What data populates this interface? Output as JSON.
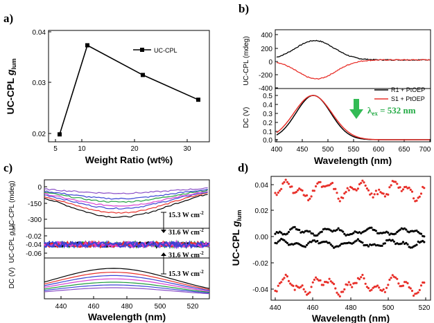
{
  "figure": {
    "panel_labels": [
      "a)",
      "b)",
      "c)",
      "d)"
    ],
    "colors": {
      "black": "#000000",
      "red": "#e8302a",
      "blue": "#3b44d4",
      "green": "#1f9e3c",
      "purple": "#8a4fc8",
      "magenta": "#d63fd0",
      "arrow_green": "#33bb55"
    }
  },
  "chart_data": [
    {
      "panel": "a)",
      "type": "line",
      "xlabel": "Weight Ratio (wt%)",
      "ylabel_main": "UC-CPL ",
      "ylabel_g": "g",
      "ylabel_sub": "lum",
      "xticks": [
        "5",
        "10",
        "20",
        "30"
      ],
      "yticks": [
        "0.02",
        "0.03",
        "0.04"
      ],
      "xlim": [
        3,
        32
      ],
      "ylim": [
        0.0185,
        0.041
      ],
      "legend": [
        "UC-CPL"
      ],
      "series": [
        {
          "name": "UC-CPL",
          "x": [
            5,
            10,
            20,
            30
          ],
          "values": [
            0.02,
            0.038,
            0.032,
            0.027
          ]
        }
      ]
    },
    {
      "panel": "b)",
      "type": "line",
      "xlabel": "Wavelength (nm)",
      "xticks": [
        "400",
        "450",
        "500",
        "550",
        "600",
        "650",
        "700"
      ],
      "xlim": [
        400,
        700
      ],
      "top": {
        "ylabel": "UC-CPL (mdeg)",
        "yticks": [
          "400",
          "200",
          "0",
          "-200",
          "-400"
        ],
        "ylim": [
          -420,
          420
        ],
        "series": [
          {
            "name": "R1 + PtOEP",
            "color": "black",
            "peak_x": 475,
            "peak_y": 290,
            "width": 38
          },
          {
            "name": "S1 + PtOEP",
            "color": "red",
            "peak_x": 478,
            "peak_y": -285,
            "width": 38
          }
        ]
      },
      "bottom": {
        "ylabel": "DC (V)",
        "yticks": [
          "0.5",
          "0.4",
          "0.3",
          "0.2",
          "0.1",
          "0.0"
        ],
        "ylim": [
          -0.02,
          0.62
        ],
        "series": [
          {
            "name": "R1 + PtOEP",
            "color": "black",
            "peak_x": 472,
            "peak_y": 0.5,
            "width": 34
          },
          {
            "name": "S1 + PtOEP",
            "color": "red",
            "peak_x": 471,
            "peak_y": 0.5,
            "width": 37
          }
        ]
      },
      "legend": [
        "R1 + PtOEP",
        "S1 + PtOEP"
      ],
      "annotation_lambda": "λ",
      "annotation_sub": "ex",
      "annotation_rest": " = 532 nm"
    },
    {
      "panel": "c)",
      "type": "line",
      "xlabel": "Wavelength (nm)",
      "xticks": [
        "440",
        "460",
        "480",
        "500",
        "520"
      ],
      "xlim": [
        430,
        530
      ],
      "top": {
        "ylabel": "UC-CPL (mdeg)",
        "yticks": [
          "0",
          "-150",
          "-300"
        ],
        "ylim": [
          -360,
          30
        ],
        "series": [
          {
            "color": "black",
            "peak_y": -280
          },
          {
            "color": "red",
            "peak_y": -240
          },
          {
            "color": "blue",
            "peak_y": -200
          },
          {
            "color": "magenta",
            "peak_y": -175
          },
          {
            "color": "green",
            "peak_y": -140
          },
          {
            "color": "blue",
            "peak_y": -110
          },
          {
            "color": "purple",
            "peak_y": -60
          }
        ]
      },
      "middle": {
        "ylabel_main": "UC-CPL ",
        "ylabel_g": "g",
        "ylabel_sub": "lum",
        "yticks": [
          "-0.02",
          "-0.04",
          "-0.06"
        ],
        "ylim": [
          -0.07,
          -0.01
        ],
        "level": -0.04
      },
      "bottom": {
        "ylabel": "DC (V)",
        "ylim": [
          0.0,
          0.58
        ],
        "series": [
          {
            "color": "black",
            "peak_y": 0.5
          },
          {
            "color": "red",
            "peak_y": 0.43
          },
          {
            "color": "blue",
            "peak_y": 0.37
          },
          {
            "color": "magenta",
            "peak_y": 0.31
          },
          {
            "color": "green",
            "peak_y": 0.25
          },
          {
            "color": "blue",
            "peak_y": 0.2
          },
          {
            "color": "purple",
            "peak_y": 0.15
          }
        ]
      },
      "annotations": [
        "15.3 W cm",
        "31.6 W cm",
        "31.6 W cm",
        "15.3 W cm"
      ],
      "annotation_sup": "-2"
    },
    {
      "panel": "d)",
      "type": "scatter",
      "xlabel": "Wavelength (nm)",
      "ylabel_main": "UC-CPL ",
      "ylabel_g": "g",
      "ylabel_sub": "lum",
      "xticks": [
        "440",
        "460",
        "480",
        "500",
        "520"
      ],
      "yticks": [
        "0.04",
        "0.02",
        "0.00",
        "-0.02",
        "-0.04"
      ],
      "xlim": [
        440,
        520
      ],
      "ylim": [
        -0.047,
        0.047
      ],
      "series": [
        {
          "color": "red",
          "level": 0.036
        },
        {
          "color": "black",
          "level": 0.004
        },
        {
          "color": "black",
          "level": -0.005
        },
        {
          "color": "red",
          "level": -0.037
        }
      ]
    }
  ]
}
